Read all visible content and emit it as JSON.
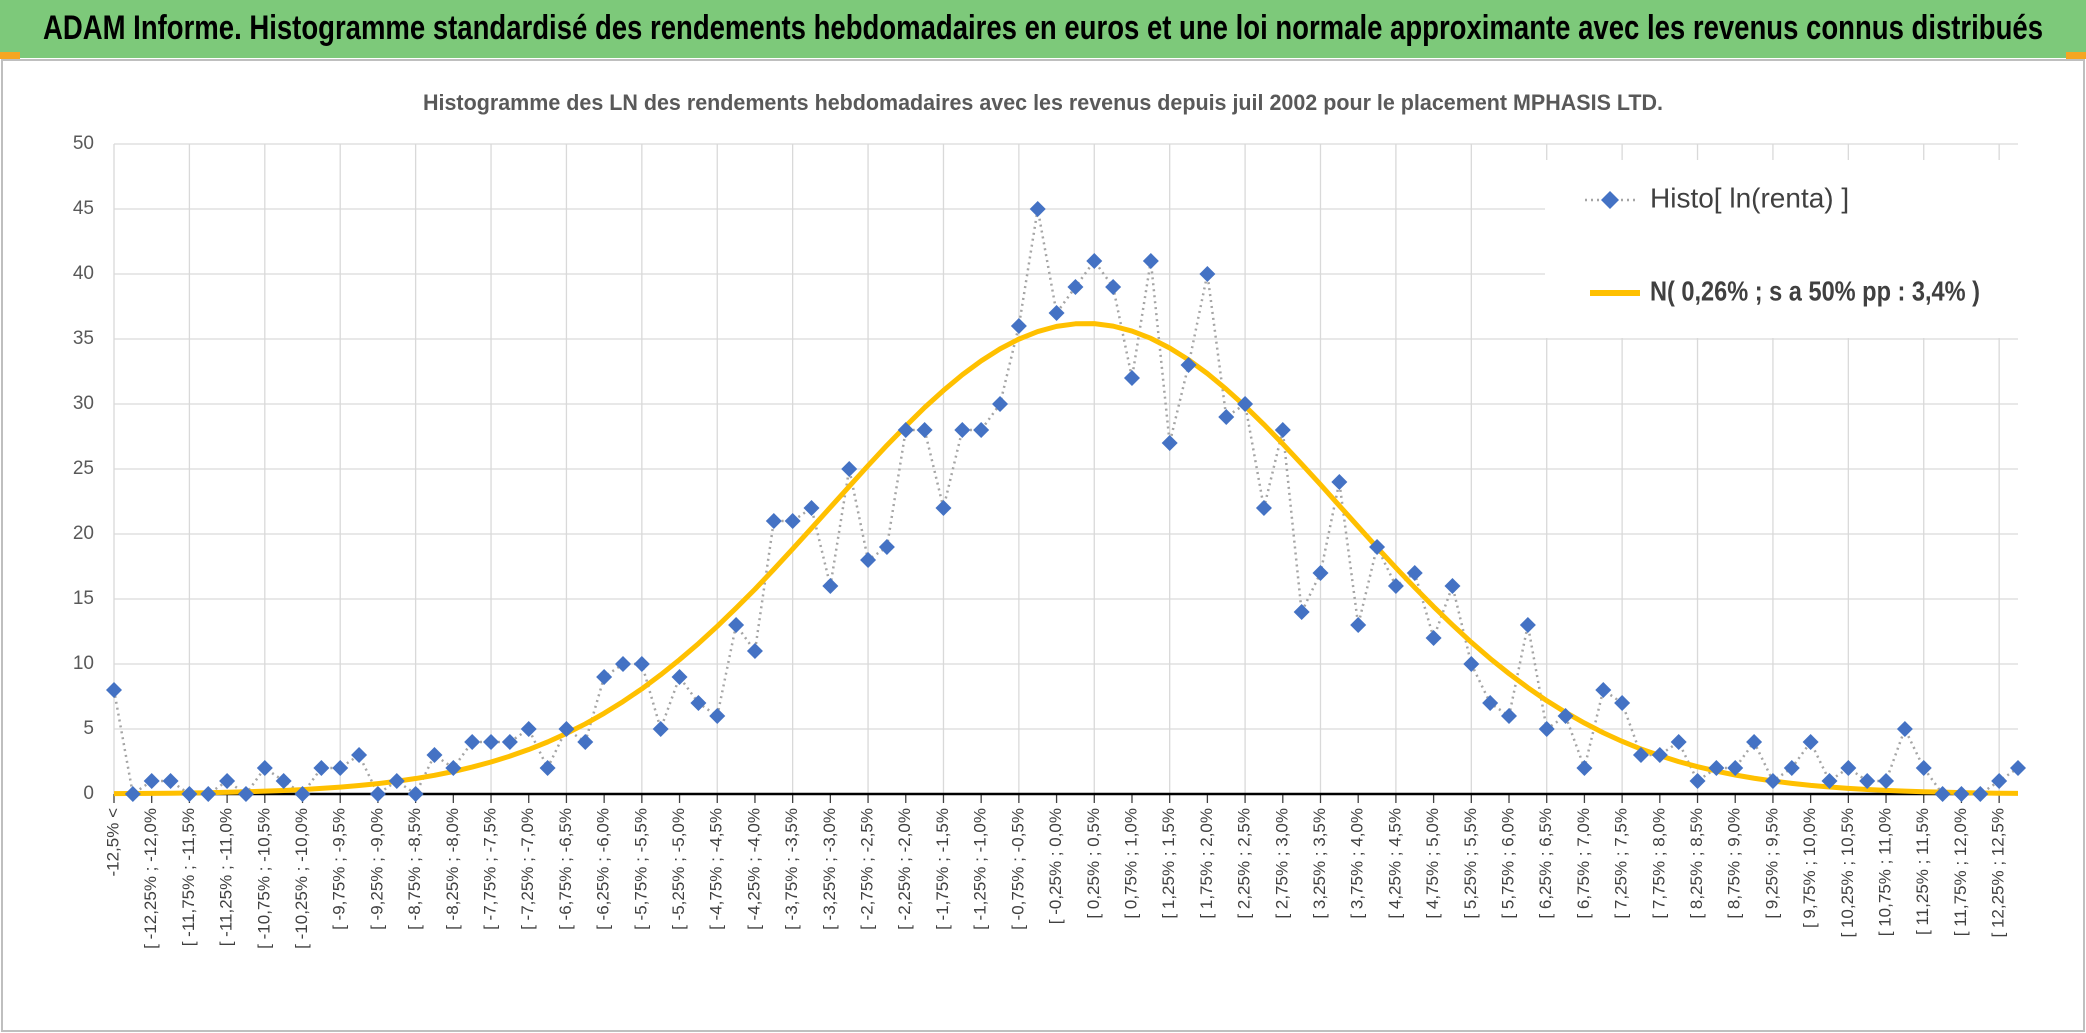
{
  "page_title": "ADAM Informe. Histogramme standardisé des rendements hebdomadaires en euros et une loi normale approximante avec les revenus connus distribués",
  "chart_data": {
    "type": "line",
    "title": "Histogramme des LN des rendements hebdomadaires avec les revenus depuis juil 2002 pour le placement MPHASIS LTD.",
    "categories": [
      "-12,5% <",
      null,
      "[ -12,25% ; -12,0%",
      null,
      "[ -11,75% ; -11,5%",
      null,
      "[ -11,25% ; -11,0%",
      null,
      "[ -10,75% ; -10,5%",
      null,
      "[ -10,25% ; -10,0%",
      null,
      "[ -9,75% ; -9,5%",
      null,
      "[ -9,25% ; -9,0%",
      null,
      "[ -8,75% ; -8,5%",
      null,
      "[ -8,25% ; -8,0%",
      null,
      "[ -7,75% ; -7,5%",
      null,
      "[ -7,25% ; -7,0%",
      null,
      "[ -6,75% ; -6,5%",
      null,
      "[ -6,25% ; -6,0%",
      null,
      "[ -5,75% ; -5,5%",
      null,
      "[ -5,25% ; -5,0%",
      null,
      "[ -4,75% ; -4,5%",
      null,
      "[ -4,25% ; -4,0%",
      null,
      "[ -3,75% ; -3,5%",
      null,
      "[ -3,25% ; -3,0%",
      null,
      "[ -2,75% ; -2,5%",
      null,
      "[ -2,25% ; -2,0%",
      null,
      "[ -1,75% ; -1,5%",
      null,
      "[ -1,25% ; -1,0%",
      null,
      "[ -0,75% ; -0,5%",
      null,
      "[ -0,25% ; 0,0%",
      null,
      "[ 0,25% ; 0,5%",
      null,
      "[ 0,75% ; 1,0%",
      null,
      "[ 1,25% ; 1,5%",
      null,
      "[ 1,75% ; 2,0%",
      null,
      "[ 2,25% ; 2,5%",
      null,
      "[ 2,75% ; 3,0%",
      null,
      "[ 3,25% ; 3,5%",
      null,
      "[ 3,75% ; 4,0%",
      null,
      "[ 4,25% ; 4,5%",
      null,
      "[ 4,75% ; 5,0%",
      null,
      "[ 5,25% ; 5,5%",
      null,
      "[ 5,75% ; 6,0%",
      null,
      "[ 6,25% ; 6,5%",
      null,
      "[ 6,75% ; 7,0%",
      null,
      "[ 7,25% ; 7,5%",
      null,
      "[ 7,75% ; 8,0%",
      null,
      "[ 8,25% ; 8,5%",
      null,
      "[ 8,75% ; 9,0%",
      null,
      "[ 9,25% ; 9,5%",
      null,
      "[ 9,75% ; 10,0%",
      null,
      "[ 10,25% ; 10,5%",
      null,
      "[ 10,75% ; 11,0%",
      null,
      "[ 11,25% ; 11,5%",
      null,
      "[ 11,75% ; 12,0%",
      null,
      "[ 12,25% ; 12,5%",
      null
    ],
    "series": [
      {
        "name": "Histo[ ln(renta) ]",
        "color": "#4472c4",
        "line_color": "#a5a5a5",
        "values": [
          8,
          0,
          1,
          1,
          0,
          0,
          1,
          0,
          2,
          1,
          0,
          2,
          2,
          3,
          0,
          1,
          0,
          3,
          2,
          4,
          4,
          4,
          5,
          2,
          5,
          4,
          9,
          10,
          10,
          5,
          9,
          7,
          6,
          13,
          11,
          21,
          21,
          22,
          16,
          25,
          18,
          19,
          28,
          28,
          22,
          28,
          28,
          30,
          36,
          45,
          37,
          39,
          41,
          39,
          32,
          41,
          27,
          33,
          40,
          29,
          30,
          22,
          28,
          14,
          17,
          24,
          13,
          19,
          16,
          17,
          12,
          16,
          10,
          7,
          6,
          13,
          5,
          6,
          2,
          8,
          7,
          3,
          3,
          4,
          1,
          2,
          2,
          4,
          1,
          2,
          4,
          1,
          2,
          1,
          1,
          5,
          2,
          0,
          0,
          0,
          1,
          2
        ]
      },
      {
        "name": "N( 0,26% ; s a 50% pp : 3,4% )",
        "color": "#ffc000",
        "values": [
          0.03,
          0.04,
          0.05,
          0.06,
          0.08,
          0.1,
          0.13,
          0.17,
          0.22,
          0.27,
          0.34,
          0.43,
          0.53,
          0.65,
          0.8,
          0.98,
          1.19,
          1.44,
          1.73,
          2.07,
          2.46,
          2.91,
          3.42,
          4.0,
          4.66,
          5.39,
          6.21,
          7.11,
          8.09,
          9.17,
          10.33,
          11.57,
          12.9,
          14.3,
          15.75,
          17.28,
          18.85,
          20.45,
          22.05,
          23.66,
          25.26,
          26.82,
          28.3,
          29.73,
          31.04,
          32.25,
          33.32,
          34.24,
          34.99,
          35.57,
          35.97,
          36.17,
          36.18,
          35.99,
          35.61,
          35.05,
          34.31,
          33.4,
          32.34,
          31.14,
          29.83,
          28.42,
          26.93,
          25.38,
          23.8,
          22.18,
          20.57,
          18.97,
          17.4,
          15.88,
          14.41,
          13.01,
          11.67,
          10.42,
          9.26,
          8.18,
          7.18,
          6.28,
          5.46,
          4.71,
          4.05,
          3.46,
          2.95,
          2.49,
          2.1,
          1.76,
          1.46,
          1.21,
          1.0,
          0.82,
          0.66,
          0.54,
          0.43,
          0.35,
          0.28,
          0.22,
          0.17,
          0.14,
          0.11,
          0.08,
          0.06,
          0.05
        ]
      }
    ],
    "ylim": [
      0,
      50
    ],
    "yticks": [
      0,
      5,
      10,
      15,
      20,
      25,
      30,
      35,
      40,
      45,
      50
    ],
    "grid": true,
    "legend": "top-right"
  }
}
